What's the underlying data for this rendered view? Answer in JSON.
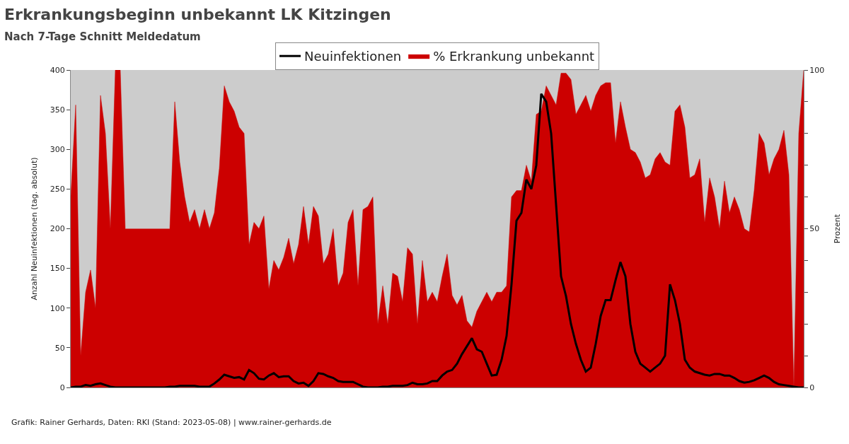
{
  "chart_data": {
    "type": "line",
    "title": "Erkrankungsbeginn unbekannt LK Kitzingen",
    "subtitle": "Nach 7-Tage Schnitt Meldedatum",
    "ylabel": "Anzahl Neuinfektionen (tag. absolut)",
    "y2label": "Prozent",
    "annotations": [
      "Grafik: Rainer Gerhards, Daten: RKI (Stand: 2023-05-08) | www.rainer-gerhards.de"
    ],
    "categories": [
      null,
      null,
      null,
      null,
      null,
      null,
      null,
      null,
      null,
      null,
      null,
      null,
      null,
      null,
      null,
      null,
      null,
      null,
      null,
      null,
      null,
      null,
      null,
      null,
      null,
      null,
      null,
      null,
      null,
      null,
      null,
      null,
      null,
      null,
      null,
      null,
      null,
      null,
      null,
      null,
      null,
      null,
      null,
      null,
      null,
      null,
      null,
      null,
      null,
      null,
      null,
      null,
      null,
      null,
      null,
      null,
      null,
      null,
      null,
      null,
      null,
      null,
      null,
      null,
      null,
      null,
      null,
      null,
      null,
      null,
      null,
      null,
      null,
      null,
      null,
      null,
      null,
      null,
      null,
      null,
      null,
      null,
      null,
      null,
      null,
      null,
      null,
      null,
      null,
      null,
      null,
      null,
      null,
      null,
      null,
      null,
      null,
      null,
      null,
      null,
      null,
      null,
      null,
      null,
      null,
      null,
      null,
      null,
      null,
      null,
      null,
      null,
      null,
      null,
      null,
      null,
      null,
      null,
      null,
      null,
      null,
      null,
      null,
      null,
      null,
      null,
      null,
      null,
      null,
      null,
      null,
      null,
      null,
      null,
      null,
      null,
      null,
      null,
      null,
      null,
      null,
      null,
      null,
      null,
      null,
      null,
      null,
      null,
      null
    ],
    "series": [
      {
        "name": "% Erkrankung unbekannt",
        "type": "area",
        "axis": "y2",
        "color": "#cc0000",
        "values": [
          60,
          89,
          10,
          30,
          37,
          25,
          92,
          80,
          50,
          100,
          100,
          50,
          null,
          null,
          null,
          50,
          null,
          null,
          null,
          null,
          50,
          90,
          71,
          60,
          52,
          56,
          50,
          56,
          50,
          55,
          69,
          95,
          90,
          87,
          82,
          80,
          45,
          52,
          50,
          54,
          31,
          40,
          37,
          41,
          47,
          39,
          45,
          57,
          45,
          57,
          54,
          39,
          42,
          50,
          32,
          36,
          52,
          56,
          32,
          56,
          57,
          60,
          20,
          32,
          20,
          36,
          35,
          27,
          44,
          42,
          20,
          40,
          27,
          30,
          27,
          35,
          42,
          29,
          26,
          29,
          21,
          19,
          24,
          27,
          30,
          27,
          30,
          30,
          32,
          60,
          62,
          62,
          70,
          65,
          86,
          87,
          95,
          92,
          89,
          99,
          99,
          97,
          86,
          89,
          92,
          87,
          92,
          95,
          96,
          96,
          77,
          90,
          82,
          75,
          74,
          71,
          66,
          67,
          72,
          74,
          71,
          70,
          87,
          89,
          82,
          66,
          67,
          72,
          52,
          66,
          60,
          50,
          65,
          55,
          60,
          56,
          50,
          49,
          62,
          80,
          77,
          67,
          72,
          75,
          81,
          67,
          0,
          80,
          100
        ]
      },
      {
        "name": "Neuinfektionen",
        "axis": "y",
        "color": "#000000",
        "values": [
          0,
          1,
          1,
          3,
          2,
          4,
          5,
          3,
          1,
          0,
          0,
          0,
          0,
          0,
          0,
          0,
          0,
          0,
          0,
          0,
          1,
          1,
          2,
          2,
          2,
          2,
          1,
          1,
          1,
          5,
          10,
          16,
          14,
          12,
          13,
          10,
          22,
          18,
          11,
          10,
          15,
          18,
          13,
          14,
          14,
          8,
          5,
          6,
          2,
          8,
          18,
          17,
          14,
          12,
          8,
          7,
          7,
          7,
          4,
          1,
          0,
          0,
          0,
          1,
          1,
          2,
          2,
          2,
          3,
          6,
          4,
          4,
          5,
          8,
          8,
          15,
          20,
          22,
          30,
          42,
          52,
          62,
          48,
          45,
          30,
          15,
          16,
          35,
          65,
          130,
          210,
          220,
          262,
          250,
          280,
          370,
          360,
          320,
          230,
          140,
          115,
          80,
          55,
          35,
          20,
          25,
          55,
          90,
          110,
          110,
          135,
          158,
          140,
          80,
          45,
          30,
          25,
          20,
          25,
          30,
          40,
          130,
          110,
          80,
          35,
          25,
          20,
          18,
          16,
          15,
          17,
          17,
          15,
          15,
          12,
          8,
          6,
          7,
          9,
          12,
          15,
          12,
          7,
          4,
          3,
          2,
          1,
          0,
          0
        ]
      }
    ],
    "ylim": [
      0,
      400
    ],
    "yticks": [
      0,
      50,
      100,
      150,
      200,
      250,
      300,
      350,
      400
    ],
    "y2lim": [
      0,
      100
    ],
    "y2ticks": [
      0,
      {
        "value": 10,
        "label": null
      },
      {
        "value": 20,
        "label": null
      },
      {
        "value": 30,
        "label": null
      },
      {
        "value": 40,
        "label": null
      },
      50,
      {
        "value": 60,
        "label": null
      },
      {
        "value": 70,
        "label": null
      },
      {
        "value": 80,
        "label": null
      },
      {
        "value": 90,
        "label": null
      },
      100
    ],
    "legend": "top",
    "grid": false,
    "marker": "none",
    "line_style": "solid"
  }
}
